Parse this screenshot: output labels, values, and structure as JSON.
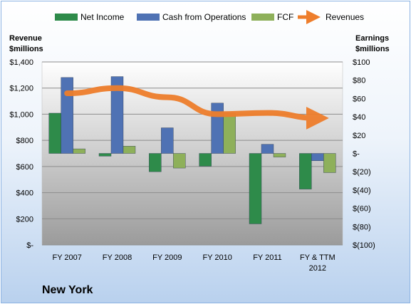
{
  "company_name": "New York",
  "colors": {
    "net_income": "#2e8b4a",
    "cash_from_operations": "#4f72b4",
    "fcf": "#8eb05a",
    "revenues": "#ee7e2c",
    "plot_top": "#ffffff",
    "plot_bottom": "#9b9b9b"
  },
  "chart_data": {
    "type": "bar",
    "categories": [
      "FY 2007",
      "FY 2008",
      "FY 2009",
      "FY 2010",
      "FY 2011",
      "FY & TTM 2012"
    ],
    "left_axis": {
      "title": [
        "Revenue",
        "$millions"
      ],
      "range": [
        0,
        1400
      ],
      "ticks": [
        "$-",
        "$200",
        "$400",
        "$600",
        "$800",
        "$1,000",
        "$1,200",
        "$1,400"
      ]
    },
    "right_axis": {
      "title": [
        "Earnings",
        "$millions"
      ],
      "range": [
        -100,
        100
      ],
      "ticks": [
        "$(100)",
        "$(80)",
        "$(60)",
        "$(40)",
        "$(20)",
        "$-",
        "$20",
        "$40",
        "$60",
        "$80",
        "$100"
      ]
    },
    "series": [
      {
        "name": "Net Income",
        "axis": "right",
        "values": [
          44,
          -3,
          -20,
          -14,
          -77,
          -39
        ]
      },
      {
        "name": "Cash from Operations",
        "axis": "right",
        "values": [
          83,
          84,
          28,
          55,
          10,
          -8
        ]
      },
      {
        "name": "FCF",
        "axis": "right",
        "values": [
          5,
          8,
          -16,
          44,
          -4,
          -21
        ]
      },
      {
        "name": "Revenues",
        "axis": "left",
        "type": "line",
        "values": [
          1160,
          1200,
          1130,
          1000,
          1010,
          970
        ]
      }
    ],
    "legend": "top",
    "grid": true
  }
}
